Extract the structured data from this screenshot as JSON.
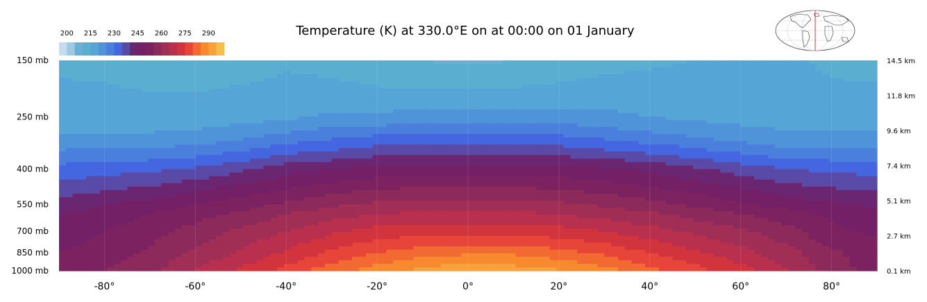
{
  "chart_data": {
    "type": "heatmap",
    "title": "Temperature (K) at 330.0°E on at 00:00 on 01 January",
    "colorbar": {
      "tick_labels": [
        "200",
        "215",
        "230",
        "245",
        "260",
        "275",
        "290"
      ],
      "levels": [
        195,
        200,
        205,
        210,
        215,
        220,
        225,
        230,
        235,
        240,
        245,
        250,
        255,
        260,
        265,
        270,
        275,
        280,
        285,
        290,
        295,
        300
      ],
      "colors": [
        "#c6dbef",
        "#9ecae1",
        "#6baed6",
        "#5aaed0",
        "#55a5d6",
        "#4f93d8",
        "#4a7fdc",
        "#4466e0",
        "#5a4aa8",
        "#6a2670",
        "#742066",
        "#7d2260",
        "#8c2a5c",
        "#a02e55",
        "#b8304e",
        "#d2343e",
        "#e7443a",
        "#f26a32",
        "#f7892e",
        "#f9a13a",
        "#f7be4c"
      ]
    },
    "x_axis": {
      "tick_labels": [
        "-80°",
        "-60°",
        "-40°",
        "-20°",
        "0°",
        "20°",
        "40°",
        "60°",
        "80°"
      ],
      "tick_values": [
        -80,
        -60,
        -40,
        -20,
        0,
        20,
        40,
        60,
        80
      ],
      "range": [
        -90,
        90
      ]
    },
    "y_axis_left": {
      "tick_labels": [
        "150 mb",
        "250 mb",
        "400 mb",
        "550 mb",
        "700 mb",
        "850 mb",
        "1000 mb"
      ],
      "tick_values": [
        150,
        250,
        400,
        550,
        700,
        850,
        1000
      ],
      "scale": "log",
      "range": [
        1000,
        150
      ]
    },
    "y_axis_right": {
      "tick_labels": [
        "14.5 km",
        "11.8 km",
        "9.6 km",
        "7.4 km",
        "5.1 km",
        "2.7 km",
        "0.1 km"
      ]
    },
    "latitudes": [
      -90,
      -80,
      -70,
      -60,
      -50,
      -40,
      -30,
      -20,
      -10,
      0,
      10,
      20,
      30,
      40,
      50,
      60,
      70,
      80,
      90
    ],
    "pressure_levels": [
      150,
      200,
      250,
      300,
      400,
      500,
      550,
      600,
      700,
      850,
      1000
    ],
    "values": [
      [
        214,
        213,
        212,
        211,
        212,
        214,
        213,
        211,
        210,
        209,
        210,
        211,
        213,
        214,
        215,
        216,
        216,
        214,
        213
      ],
      [
        216,
        216,
        215,
        215,
        216,
        217,
        217,
        216,
        216,
        216,
        216,
        217,
        218,
        218,
        218,
        218,
        217,
        216,
        216
      ],
      [
        217,
        217,
        217,
        217,
        218,
        219,
        221,
        221,
        222,
        222,
        222,
        222,
        221,
        220,
        219,
        218,
        218,
        218,
        218
      ],
      [
        221,
        221,
        221,
        222,
        224,
        227,
        229,
        231,
        231,
        232,
        231,
        231,
        229,
        227,
        225,
        223,
        221,
        221,
        221
      ],
      [
        232,
        233,
        234,
        236,
        239,
        243,
        245,
        247,
        248,
        248,
        248,
        247,
        246,
        244,
        241,
        238,
        235,
        234,
        233
      ],
      [
        239,
        241,
        243,
        246,
        249,
        252,
        255,
        257,
        258,
        258,
        258,
        257,
        255,
        253,
        250,
        247,
        244,
        242,
        241
      ],
      [
        242,
        245,
        247,
        250,
        253,
        256,
        259,
        261,
        262,
        262,
        262,
        261,
        259,
        257,
        254,
        251,
        248,
        246,
        244
      ],
      [
        245,
        247,
        250,
        253,
        256,
        260,
        263,
        265,
        266,
        266,
        266,
        265,
        263,
        261,
        258,
        255,
        252,
        249,
        247
      ],
      [
        248,
        250,
        253,
        257,
        261,
        265,
        269,
        272,
        273,
        273,
        273,
        272,
        270,
        267,
        264,
        261,
        257,
        251,
        249
      ],
      [
        250,
        252,
        256,
        261,
        266,
        271,
        276,
        280,
        283,
        284,
        284,
        282,
        279,
        275,
        271,
        267,
        262,
        256,
        252
      ],
      [
        252,
        255,
        259,
        265,
        271,
        277,
        283,
        288,
        292,
        294,
        293,
        291,
        287,
        282,
        277,
        272,
        266,
        258,
        252
      ]
    ]
  },
  "minimap": {
    "land_color": "#ffffff",
    "meridian_color": "#e03030"
  }
}
